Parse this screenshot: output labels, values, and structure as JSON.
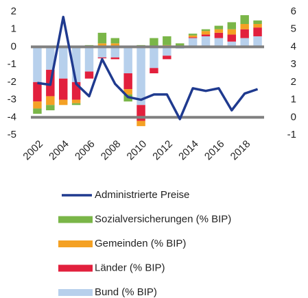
{
  "chart_data": {
    "type": "stacked-bar-line",
    "categories": [
      "2002",
      null,
      "2004",
      null,
      "2006",
      null,
      "2008",
      null,
      "2010",
      null,
      "2012",
      null,
      "2014",
      null,
      "2016",
      null,
      "2018",
      null
    ],
    "series": [
      {
        "name": "Bund (% BIP)",
        "color": "#b7d0ec",
        "values": [
          -2.0,
          -1.3,
          -1.8,
          -2.0,
          -1.4,
          -0.6,
          -0.6,
          -1.5,
          -3.3,
          -1.2,
          -0.5,
          -0.1,
          0.5,
          0.6,
          0.5,
          0.3,
          0.5,
          0.6
        ]
      },
      {
        "name": "Länder (% BIP)",
        "color": "#e2203d",
        "values": [
          -1.1,
          -1.5,
          -1.2,
          -1.0,
          -0.4,
          -0.05,
          -0.1,
          -0.9,
          -0.9,
          -0.3,
          -0.2,
          0.0,
          0.05,
          0.1,
          0.3,
          0.4,
          0.5,
          0.5
        ]
      },
      {
        "name": "Gemeinden (% BIP)",
        "color": "#f4a124",
        "values": [
          -0.4,
          -0.5,
          -0.3,
          -0.2,
          0.0,
          0.2,
          0.2,
          -0.3,
          -0.3,
          0.0,
          0.1,
          0.0,
          0.1,
          0.2,
          0.2,
          0.3,
          0.3,
          0.2
        ]
      },
      {
        "name": "Sozialversicherungen (% BIP)",
        "color": "#7ab648",
        "values": [
          -0.3,
          -0.3,
          0.0,
          -0.1,
          0.1,
          0.6,
          0.3,
          -0.4,
          0.1,
          0.5,
          0.5,
          0.2,
          0.1,
          0.1,
          0.2,
          0.4,
          0.5,
          0.2
        ]
      },
      {
        "name": "Administrierte Preise",
        "color": "#1f3a8f",
        "axis": "y2",
        "values": [
          1.95,
          1.85,
          5.7,
          1.9,
          1.2,
          3.3,
          1.9,
          1.15,
          1.0,
          1.3,
          1.3,
          -0.1,
          1.65,
          1.5,
          1.65,
          0.4,
          1.35,
          1.6
        ]
      }
    ],
    "ylim": [
      -5,
      2
    ],
    "yticks": [
      -5,
      -4,
      -3,
      -2,
      -1,
      0,
      1,
      2
    ],
    "y2lim": [
      -1,
      6
    ],
    "y2ticks": [
      -1,
      0,
      1,
      2,
      3,
      4,
      5,
      6
    ]
  }
}
